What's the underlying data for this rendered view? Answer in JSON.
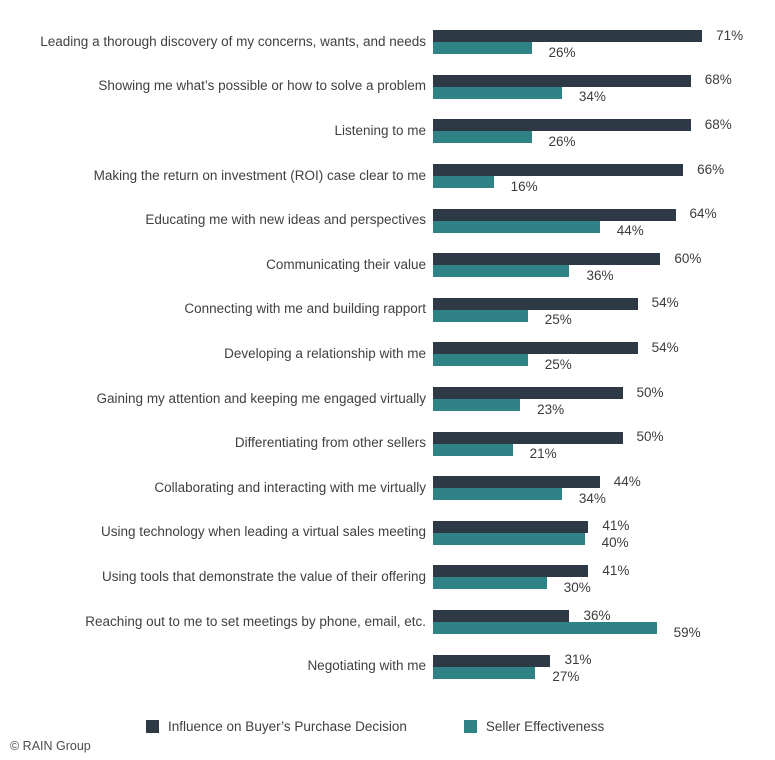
{
  "chart_data": {
    "type": "bar",
    "orientation": "horizontal",
    "title": "",
    "xlabel": "",
    "ylabel": "",
    "xlim": [
      0,
      75
    ],
    "grid": false,
    "legend_position": "bottom",
    "value_suffix": "%",
    "categories": [
      "Leading a thorough discovery of my concerns, wants, and needs",
      "Showing me what’s possible or how to solve a problem",
      "Listening to me",
      "Making the return on investment (ROI) case clear to me",
      "Educating me with new ideas and perspectives",
      "Communicating their value",
      "Connecting with me and building rapport",
      "Developing a relationship with me",
      "Gaining my attention and keeping me engaged virtually",
      "Differentiating from other sellers",
      "Collaborating and interacting with me virtually",
      "Using technology when leading a virtual sales meeting",
      "Using tools that demonstrate the value of their offering",
      "Reaching out to me to set meetings by phone, email, etc.",
      "Negotiating with me"
    ],
    "series": [
      {
        "name": "Influence on Buyer’s Purchase Decision",
        "color": "#2d3a46",
        "values": [
          71,
          68,
          68,
          66,
          64,
          60,
          54,
          54,
          50,
          50,
          44,
          41,
          41,
          36,
          31
        ]
      },
      {
        "name": "Seller Effectiveness",
        "color": "#2f8285",
        "values": [
          26,
          34,
          26,
          16,
          44,
          36,
          25,
          25,
          23,
          21,
          34,
          40,
          30,
          59,
          27
        ]
      }
    ]
  },
  "footer": {
    "credit": "© RAIN Group"
  }
}
